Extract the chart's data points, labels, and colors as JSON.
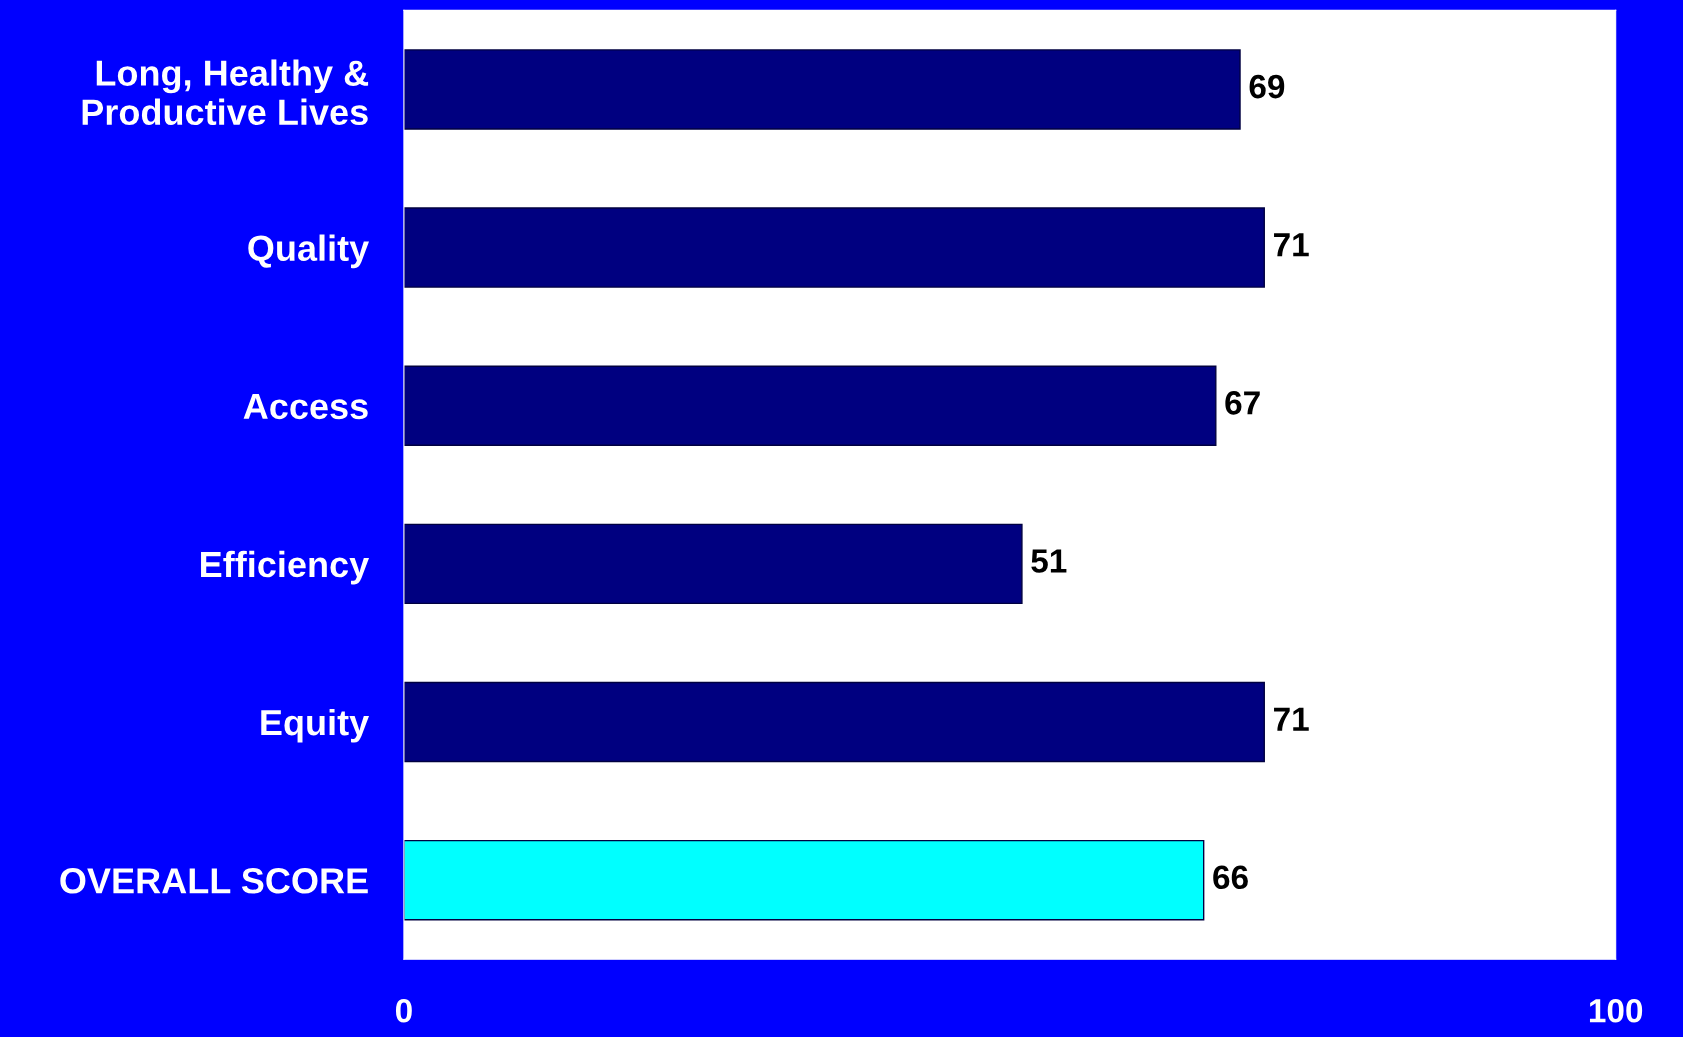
{
  "chart_data": {
    "type": "bar",
    "orientation": "horizontal",
    "categories": [
      "Long, Healthy &\nProductive Lives",
      "Quality",
      "Access",
      "Efficiency",
      "Equity",
      "OVERALL SCORE"
    ],
    "values": [
      69,
      71,
      67,
      51,
      71,
      66
    ],
    "colors": [
      "#000080",
      "#000080",
      "#000080",
      "#000080",
      "#000080",
      "#00ffff"
    ],
    "xlim": [
      0,
      100
    ],
    "xticks": [
      0,
      100
    ],
    "data_labels": true,
    "grid": false,
    "legend": false
  }
}
